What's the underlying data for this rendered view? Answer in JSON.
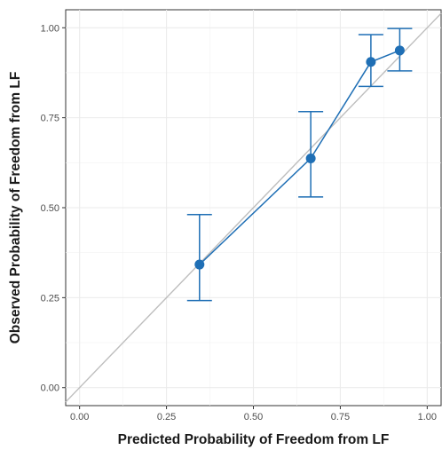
{
  "chart_data": {
    "type": "scatter",
    "xlabel": "Predicted Probability of Freedom from LF",
    "ylabel": "Observed Probability of Freedom from LF",
    "xlim": [
      -0.04,
      1.04
    ],
    "ylim": [
      -0.05,
      1.05
    ],
    "x_ticks": [
      0,
      0.25,
      0.5,
      0.75,
      1.0
    ],
    "x_tick_labels": [
      "0.00",
      "0.25",
      "0.50",
      "0.75",
      "1.00"
    ],
    "y_ticks": [
      0,
      0.25,
      0.5,
      0.75,
      1.0
    ],
    "y_tick_labels": [
      "0.00",
      "0.25",
      "0.50",
      "0.75",
      "1.00"
    ],
    "grid": true,
    "reference_line": {
      "from": [
        -0.04,
        -0.04
      ],
      "to": [
        1.04,
        1.04
      ],
      "color": "#bdbdbd"
    },
    "series": [
      {
        "color": "#1f6fb5",
        "points": [
          {
            "x": 0.345,
            "y": 0.342,
            "ymin": 0.242,
            "ymax": 0.481
          },
          {
            "x": 0.665,
            "y": 0.637,
            "ymin": 0.53,
            "ymax": 0.767
          },
          {
            "x": 0.838,
            "y": 0.905,
            "ymin": 0.837,
            "ymax": 0.981
          },
          {
            "x": 0.921,
            "y": 0.937,
            "ymin": 0.88,
            "ymax": 0.998
          }
        ]
      }
    ]
  }
}
